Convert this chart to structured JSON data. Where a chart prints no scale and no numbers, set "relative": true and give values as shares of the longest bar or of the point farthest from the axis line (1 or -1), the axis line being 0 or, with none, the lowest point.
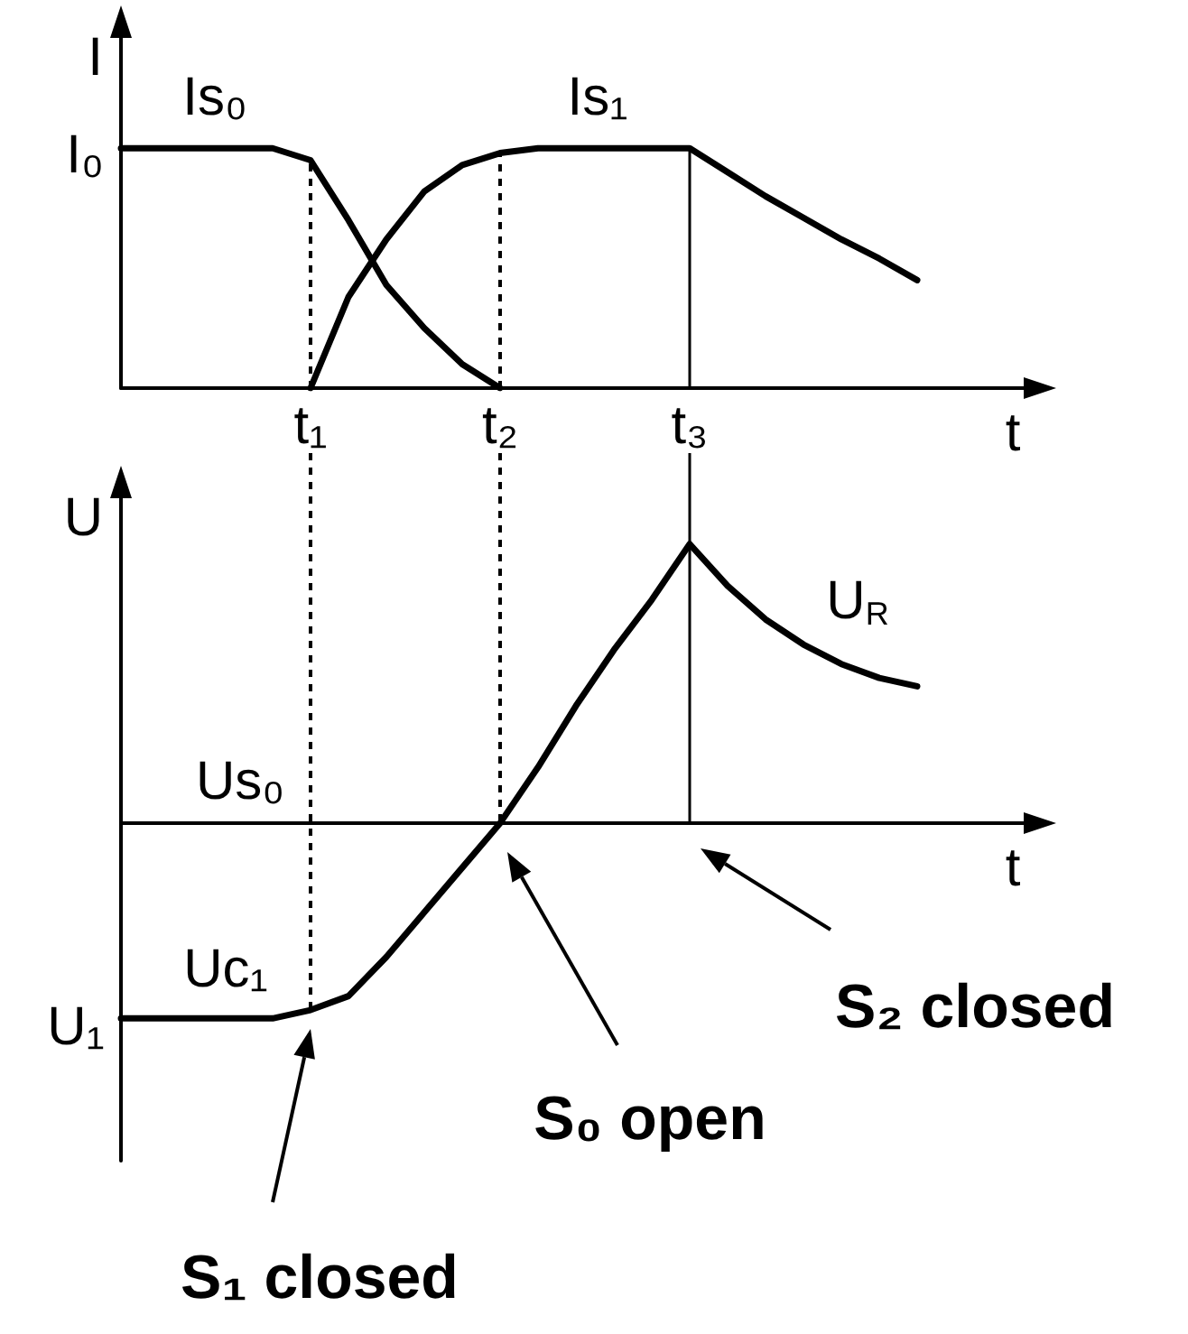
{
  "chart_data": [
    {
      "type": "line",
      "relative": true,
      "marker": "none",
      "xlabel": "t",
      "ylabel": "I",
      "tick_labels": "x",
      "categories": [
        null,
        null,
        null,
        null,
        null,
        "t₁",
        null,
        null,
        null,
        null,
        "t₂",
        null,
        null,
        null,
        null,
        "t₃",
        null,
        null,
        null,
        null,
        null,
        null,
        null,
        null,
        null
      ],
      "series": [
        {
          "name": "Is₀",
          "color": "#000000",
          "values": [
            1,
            1,
            1,
            1,
            1,
            0.95,
            0.7,
            0.43,
            0.25,
            0.1,
            0,
            null,
            null,
            null,
            null,
            null,
            null,
            null,
            null,
            null,
            null,
            null,
            null,
            null,
            null
          ]
        },
        {
          "name": "Is₁",
          "color": "#000000",
          "values": [
            null,
            null,
            null,
            null,
            null,
            0,
            0.38,
            0.62,
            0.82,
            0.93,
            0.98,
            1,
            1,
            1,
            1,
            1,
            0.9,
            0.8,
            0.71,
            0.62,
            0.54,
            0.45,
            null,
            null,
            null
          ]
        }
      ],
      "ref_lines": [
        {
          "axis": "x",
          "value": "t₁",
          "color": "#000000",
          "line_style": "dashed"
        },
        {
          "axis": "x",
          "value": "t₂",
          "color": "#000000",
          "line_style": "dashed"
        },
        {
          "axis": "x",
          "value": "t₃",
          "color": "#000000",
          "line_style": "solid"
        }
      ],
      "annotations": [
        "I₀"
      ]
    },
    {
      "type": "line",
      "relative": true,
      "marker": "none",
      "xlabel": "t",
      "ylabel": "U",
      "tick_labels": false,
      "categories": [
        null,
        null,
        null,
        null,
        null,
        null,
        null,
        null,
        null,
        null,
        null,
        null,
        null,
        null,
        null,
        null,
        null,
        null,
        null,
        null,
        null,
        null,
        null,
        null,
        null
      ],
      "series": [
        {
          "name": "U$_{R}$",
          "color": "#000000",
          "values": [
            -0.7,
            -0.7,
            -0.7,
            -0.7,
            -0.7,
            -0.67,
            -0.62,
            -0.48,
            -0.32,
            -0.16,
            0,
            0.2,
            0.42,
            0.62,
            0.8,
            1,
            0.85,
            0.73,
            0.64,
            0.57,
            0.52,
            0.49,
            null,
            null,
            null
          ]
        }
      ],
      "annotations": [
        "U₁",
        "Us₀",
        "Uc₁",
        "S₁ closed",
        "S₀ open",
        "S₂ closed"
      ]
    }
  ]
}
